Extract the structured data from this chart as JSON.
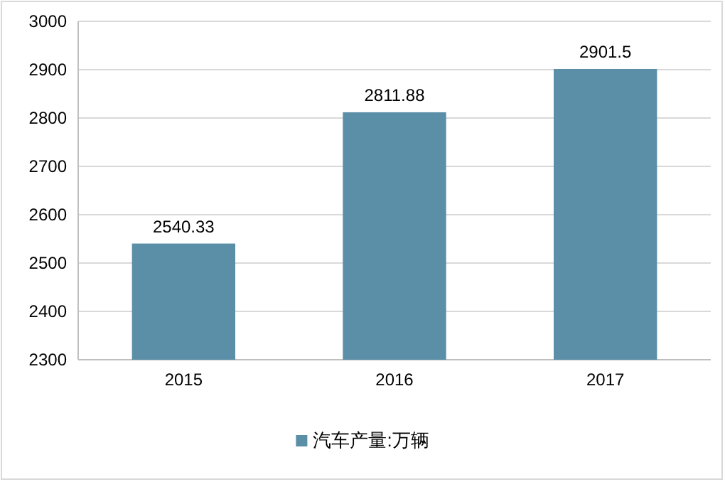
{
  "chart_data": {
    "type": "bar",
    "categories": [
      "2015",
      "2016",
      "2017"
    ],
    "series": [
      {
        "name": "汽车产量:万辆",
        "color": "#5b8fa8",
        "values": [
          2540.33,
          2811.88,
          2901.5
        ]
      }
    ],
    "ylim": [
      2300,
      3000
    ],
    "yticks": [
      2300,
      2400,
      2500,
      2600,
      2700,
      2800,
      2900,
      3000
    ],
    "grid": "y",
    "legend": "bottom",
    "data_labels": true
  }
}
